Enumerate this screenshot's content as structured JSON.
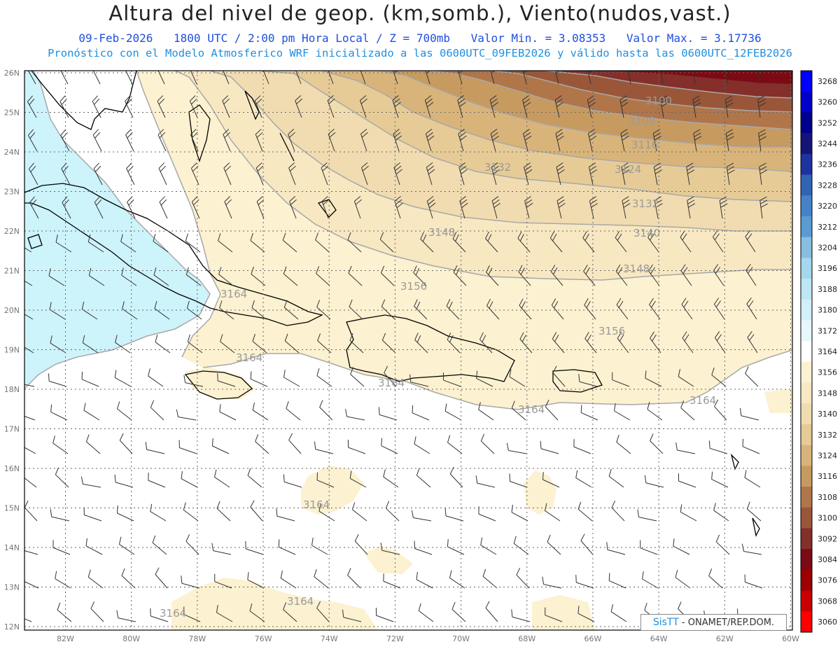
{
  "header": {
    "title": "Altura del nivel de geop. (km,somb.), Viento(nudos,vast.)",
    "date": "09-Feb-2026",
    "time": "1800 UTC / 2:00 pm Hora Local / Z = 700mb",
    "min": "Valor Min. = 3.08353",
    "max": "Valor Max. = 3.17736",
    "model_info": "Pronóstico con el Modelo Atmosferico WRF inicializado a las 0600UTC_09FEB2026 y válido hasta las  0600UTC_12FEB2026"
  },
  "axes": {
    "lon_labels": [
      "82W",
      "80W",
      "78W",
      "76W",
      "74W",
      "72W",
      "70W",
      "68W",
      "66W",
      "64W",
      "62W",
      "60W"
    ],
    "lat_labels": [
      "26N",
      "25N",
      "24N",
      "23N",
      "22N",
      "21N",
      "20N",
      "19N",
      "18N",
      "17N",
      "16N",
      "15N",
      "14N",
      "13N",
      "12N"
    ]
  },
  "colorbar": {
    "levels": [
      "3268",
      "3260",
      "3252",
      "3244",
      "3236",
      "3228",
      "3220",
      "3212",
      "3204",
      "3196",
      "3188",
      "3180",
      "3172",
      "3164",
      "3156",
      "3148",
      "3140",
      "3132",
      "3124",
      "3116",
      "3108",
      "3100",
      "3092",
      "3084",
      "3076",
      "3068",
      "3060"
    ],
    "colors": [
      "#0000ff",
      "#0000c8",
      "#00008c",
      "#141478",
      "#1e32a0",
      "#3264b4",
      "#4682c8",
      "#5a9bd2",
      "#87bee1",
      "#a5d7ee",
      "#bee6f5",
      "#d2f0fa",
      "#e6f8fc",
      "#ffffff",
      "#fcf1d0",
      "#f7e8c2",
      "#f0dcb0",
      "#e6cb97",
      "#d9b47a",
      "#c79a60",
      "#b0764a",
      "#9a5638",
      "#842f2a",
      "#7c0a14",
      "#9c0000",
      "#c80000",
      "#ff0000"
    ]
  },
  "contour_labels": [
    "3100",
    "3108",
    "3116",
    "3124",
    "3132",
    "3132",
    "3140",
    "3148",
    "3148",
    "3156",
    "3156",
    "3164",
    "3164",
    "3164",
    "3164",
    "3164",
    "3164",
    "3164",
    "3164"
  ],
  "credit": {
    "sis": "SisTT",
    "text": " - ONAMET/REP.DOM."
  }
}
